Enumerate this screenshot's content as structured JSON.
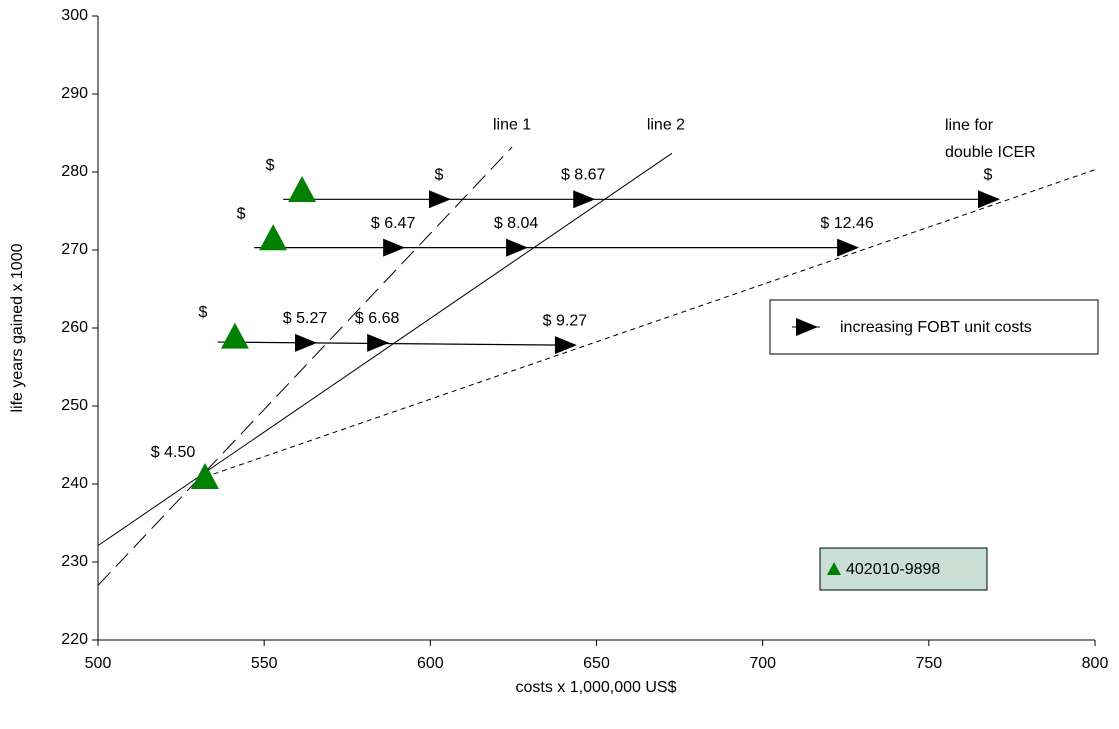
{
  "chart_data": {
    "type": "scatter",
    "x_label": "costs x 1,000,000 US$",
    "y_label": "life years gained x 1000",
    "xlim": [
      500,
      800
    ],
    "xticks": [
      500,
      550,
      600,
      650,
      700,
      750,
      800
    ],
    "ylim": [
      220,
      300
    ],
    "yticks": [
      220,
      230,
      240,
      250,
      260,
      270,
      280,
      290,
      300
    ],
    "grid": false,
    "series": [
      {
        "name": "402010-9898",
        "color": "#008000",
        "marker": "triangle",
        "x": [
          532.2,
          541.2,
          552.7,
          561.4
        ],
        "values": [
          240.9,
          258.9,
          271.5,
          277.7
        ],
        "point_labels": [
          "$ 4.50",
          "$",
          "$",
          "$"
        ]
      },
      {
        "name": "increasing FOBT unit  costs",
        "color": "#000000",
        "marker": "arrow",
        "x": [
          562.3,
          584,
          640.5,
          588.8,
          625.8,
          725.4,
          602.6,
          646,
          767.8
        ],
        "values": [
          258.1,
          258.1,
          257.8,
          270.3,
          270.3,
          270.3,
          276.5,
          276.5,
          276.5
        ],
        "point_labels": [
          "$ 5.27",
          "$ 6.68",
          "$ 9.27",
          "$ 6.47",
          "$ 8.04",
          "$ 12.46",
          "$",
          "$ 8.67",
          "$"
        ]
      }
    ],
    "connectors": [
      {
        "x": [
          536,
          640.5
        ],
        "values": [
          258.2,
          257.8
        ]
      },
      {
        "x": [
          547,
          725.4
        ],
        "values": [
          270.3,
          270.3
        ]
      },
      {
        "x": [
          555.7,
          767.8
        ],
        "values": [
          276.5,
          276.5
        ]
      }
    ],
    "lines": [
      {
        "label": [
          "line 1"
        ],
        "style": "long-dash",
        "x": [
          500,
          624.6
        ],
        "values": [
          227,
          283.2
        ]
      },
      {
        "label": [
          "line 2"
        ],
        "style": "solid",
        "x": [
          500,
          672.7
        ],
        "values": [
          232.1,
          282.4
        ]
      },
      {
        "label": [
          "line for",
          "double ICER"
        ],
        "style": "short-dash",
        "x": [
          532.2,
          800
        ],
        "values": [
          240.9,
          280.3
        ]
      }
    ]
  }
}
